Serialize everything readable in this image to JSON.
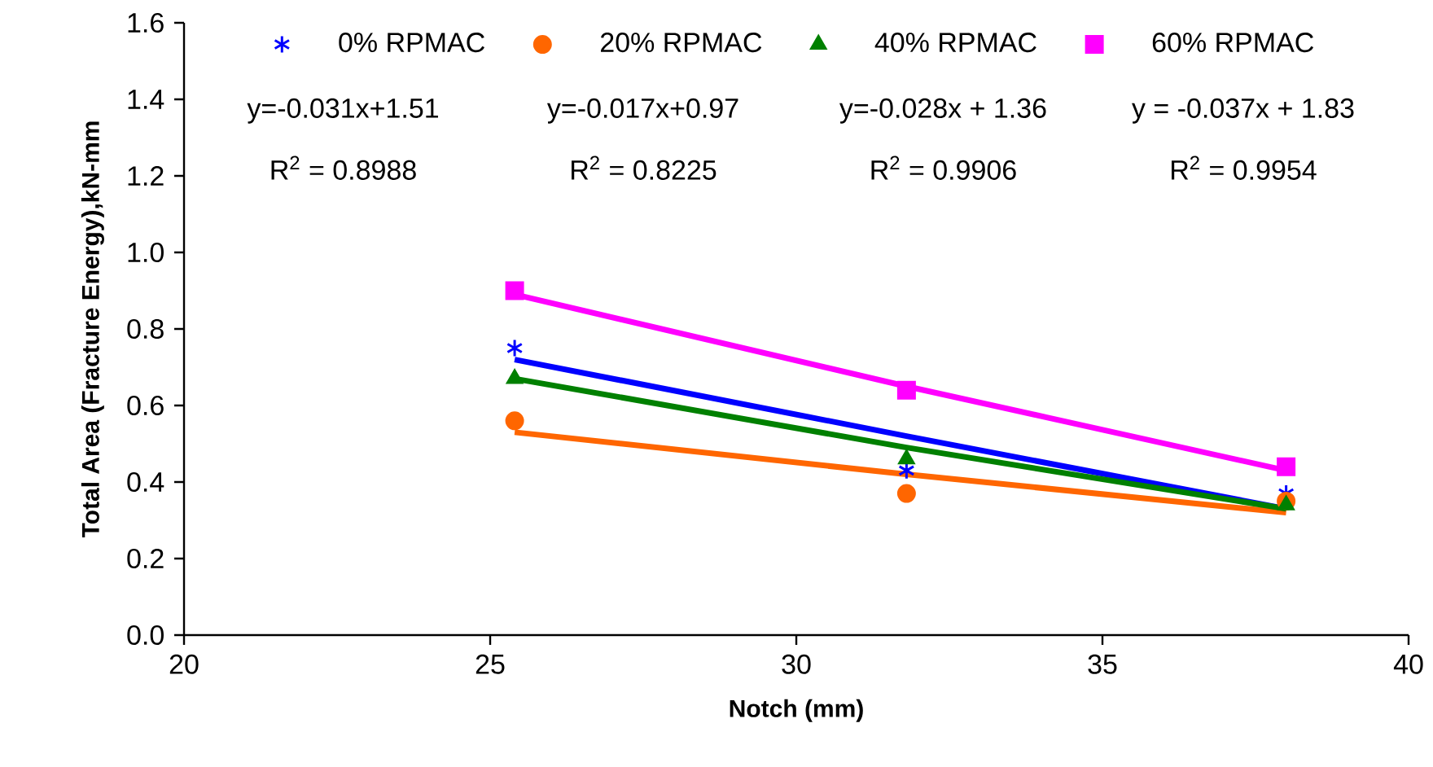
{
  "chart_data": {
    "type": "scatter",
    "xlabel": "Notch (mm)",
    "ylabel": "Total Area (Fracture Energy),kN-mm",
    "xlim": [
      20,
      40
    ],
    "xticks": [
      20,
      25,
      30,
      35,
      40
    ],
    "ylim": [
      0,
      1.6
    ],
    "yticks": [
      {
        "value": 0,
        "label": "0.0"
      },
      {
        "value": 0.2,
        "label": "0.2"
      },
      {
        "value": 0.4,
        "label": "0.4"
      },
      {
        "value": 0.6,
        "label": "0.6"
      },
      {
        "value": 0.8,
        "label": "0.8"
      },
      {
        "value": 1.0,
        "label": "1.0"
      },
      {
        "value": 1.2,
        "label": "1.2"
      },
      {
        "value": 1.4,
        "label": "1.4"
      },
      {
        "value": 1.6,
        "label": "1.6"
      }
    ],
    "x": [
      25.4,
      31.8,
      38.0
    ],
    "series": [
      {
        "name": "0% RPMAC",
        "marker": "cross",
        "color": "#0000ff",
        "values": [
          0.75,
          0.43,
          0.37
        ]
      },
      {
        "name": "20% RPMAC",
        "marker": "circle",
        "color": "#ff6600",
        "values": [
          0.56,
          0.37,
          0.35
        ]
      },
      {
        "name": "40% RPMAC",
        "marker": "triangle",
        "color": "#008000",
        "values": [
          0.67,
          0.46,
          0.34
        ]
      },
      {
        "name": "60% RPMAC",
        "marker": "square",
        "color": "#ff00ff",
        "values": [
          0.9,
          0.64,
          0.44
        ]
      },
      {
        "type": "line",
        "color": "#0000ff",
        "values": [
          0.72,
          0.52,
          0.33
        ]
      },
      {
        "type": "line",
        "color": "#ff6600",
        "values": [
          0.53,
          0.42,
          0.32
        ]
      },
      {
        "type": "line",
        "color": "#008000",
        "values": [
          0.67,
          0.49,
          0.33
        ]
      },
      {
        "type": "line",
        "color": "#ff00ff",
        "values": [
          0.89,
          0.65,
          0.43
        ]
      }
    ],
    "annotations": [
      "y=-0.031x+1.51",
      "y=-0.017x+0.97",
      "y=-0.028x + 1.36",
      "y = -0.037x + 1.83",
      "R$^{2}$ = 0.8988",
      "R$^{2}$ = 0.8225",
      "R$^{2}$ = 0.9906",
      "R$^{2}$ = 0.9954"
    ],
    "legend": "top",
    "grid": false
  }
}
